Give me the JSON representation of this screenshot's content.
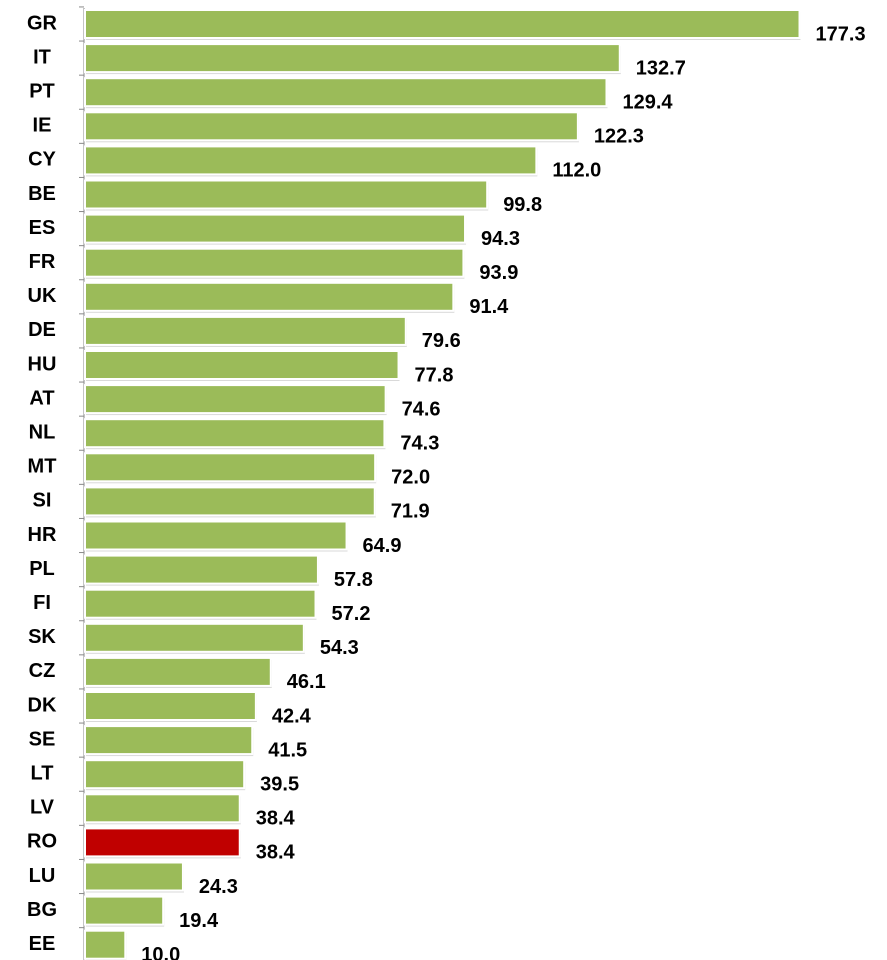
{
  "chart_data": {
    "type": "bar",
    "orientation": "horizontal",
    "categories": [
      "GR",
      "IT",
      "PT",
      "IE",
      "CY",
      "BE",
      "ES",
      "FR",
      "UK",
      "DE",
      "HU",
      "AT",
      "NL",
      "MT",
      "SI",
      "HR",
      "PL",
      "FI",
      "SK",
      "CZ",
      "DK",
      "SE",
      "LT",
      "LV",
      "RO",
      "LU",
      "BG",
      "EE"
    ],
    "values": [
      177.3,
      132.7,
      129.4,
      122.3,
      112.0,
      99.8,
      94.3,
      93.9,
      91.4,
      79.6,
      77.8,
      74.6,
      74.3,
      72.0,
      71.9,
      64.9,
      57.8,
      57.2,
      54.3,
      46.1,
      42.4,
      41.5,
      39.5,
      38.4,
      38.4,
      24.3,
      19.4,
      10.0
    ],
    "value_labels": [
      "177.3",
      "132.7",
      "129.4",
      "122.3",
      "112.0",
      "99.8",
      "94.3",
      "93.9",
      "91.4",
      "79.6",
      "77.8",
      "74.6",
      "74.3",
      "72.0",
      "71.9",
      "64.9",
      "57.8",
      "57.2",
      "54.3",
      "46.1",
      "42.4",
      "41.5",
      "39.5",
      "38.4",
      "38.4",
      "24.3",
      "19.4",
      "10.0"
    ],
    "colors": [
      "#9bbb59",
      "#9bbb59",
      "#9bbb59",
      "#9bbb59",
      "#9bbb59",
      "#9bbb59",
      "#9bbb59",
      "#9bbb59",
      "#9bbb59",
      "#9bbb59",
      "#9bbb59",
      "#9bbb59",
      "#9bbb59",
      "#9bbb59",
      "#9bbb59",
      "#9bbb59",
      "#9bbb59",
      "#9bbb59",
      "#9bbb59",
      "#9bbb59",
      "#9bbb59",
      "#9bbb59",
      "#9bbb59",
      "#9bbb59",
      "#c00000",
      "#9bbb59",
      "#9bbb59",
      "#9bbb59"
    ]
  }
}
